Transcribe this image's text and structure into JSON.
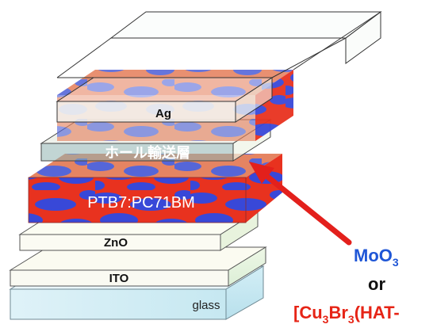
{
  "layers": [
    {
      "id": "ag",
      "label": "Ag"
    },
    {
      "id": "hole-transport",
      "label": "ホール輸送層"
    },
    {
      "id": "active",
      "label": "PTB7:PC71BM"
    },
    {
      "id": "zno",
      "label": "ZnO"
    },
    {
      "id": "ito",
      "label": "ITO"
    },
    {
      "id": "glass",
      "label": "glass"
    }
  ],
  "materials": {
    "moo3": {
      "base": "MoO",
      "sub": "3"
    },
    "or_text": "or",
    "cu_complex": {
      "p1": "[Cu",
      "s1": "3",
      "p2": "Br",
      "s2": "3",
      "p3": "(HAT-"
    }
  },
  "colors": {
    "arrow": "#e3201c",
    "blue_text": "#1f56d6",
    "red_text": "#e62416",
    "blend_red": "#e8321f",
    "blend_blue": "#3848d8"
  }
}
